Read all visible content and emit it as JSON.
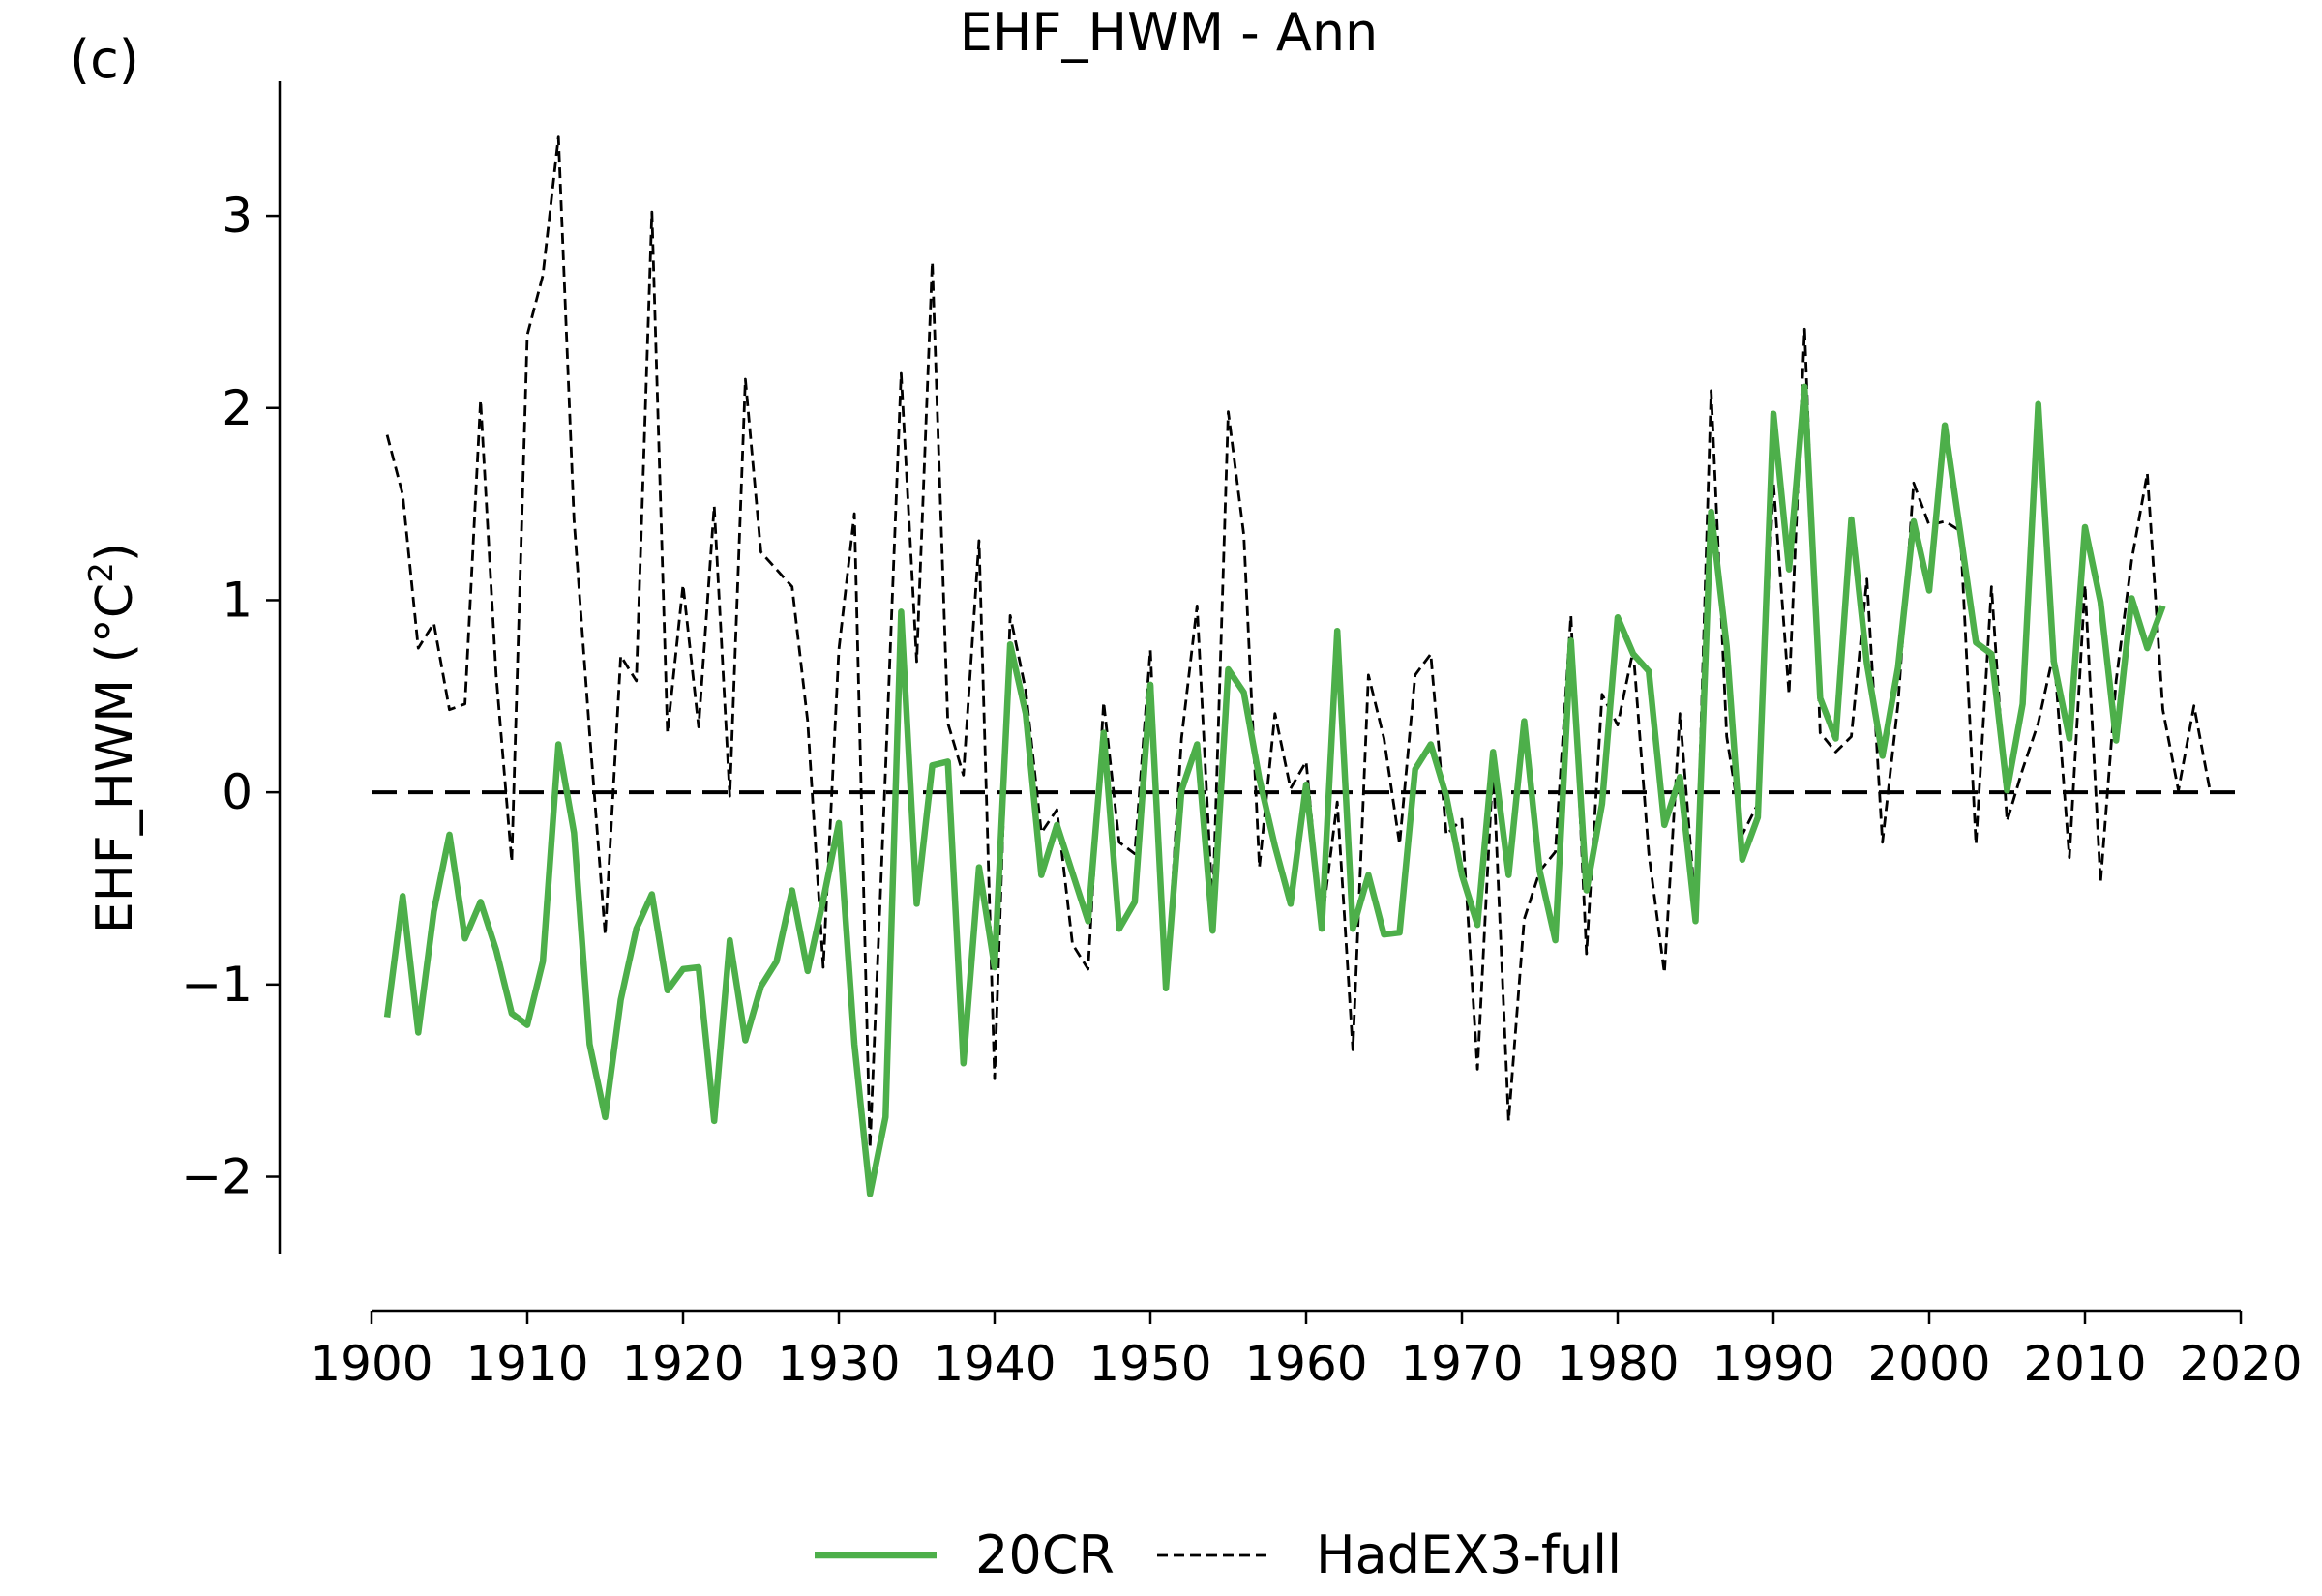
{
  "panel_label": "(c)",
  "chart_data": {
    "type": "line",
    "title": "EHF_HWM - Ann",
    "xlabel": "",
    "ylabel": "EHF_HWM (°C²)",
    "ylabel_main": "EHF_HWM (",
    "ylabel_unit": "°C",
    "ylabel_sup": "2",
    "ylabel_close": ")",
    "xlim": [
      1900,
      2020
    ],
    "ylim": [
      -2.4,
      3.7
    ],
    "x_ticks": [
      1900,
      1910,
      1920,
      1930,
      1940,
      1950,
      1960,
      1970,
      1980,
      1990,
      2000,
      2010,
      2020
    ],
    "x_tick_labels": [
      "1900",
      "1910",
      "1920",
      "1930",
      "1940",
      "1950",
      "1960",
      "1970",
      "1980",
      "1990",
      "2000",
      "2010",
      "2020"
    ],
    "y_ticks": [
      -2,
      -1,
      0,
      1,
      2,
      3
    ],
    "y_tick_labels": [
      "−2",
      "−1",
      "0",
      "1",
      "2",
      "3"
    ],
    "grid": false,
    "legend_position": "bottom-center",
    "reference_line": {
      "y": 0,
      "x_range": [
        1900,
        2020
      ],
      "color": "#000000",
      "style": "dashed"
    },
    "series": [
      {
        "name": "20CR",
        "color": "#4daf4a",
        "style": "solid",
        "x": [
          1901,
          1902,
          1903,
          1904,
          1905,
          1906,
          1907,
          1908,
          1909,
          1910,
          1911,
          1912,
          1913,
          1914,
          1915,
          1916,
          1917,
          1918,
          1919,
          1920,
          1921,
          1922,
          1923,
          1924,
          1925,
          1926,
          1927,
          1928,
          1929,
          1930,
          1931,
          1932,
          1933,
          1934,
          1935,
          1936,
          1937,
          1938,
          1939,
          1940,
          1941,
          1942,
          1943,
          1944,
          1945,
          1946,
          1947,
          1948,
          1949,
          1950,
          1951,
          1952,
          1953,
          1954,
          1955,
          1956,
          1957,
          1958,
          1959,
          1960,
          1961,
          1962,
          1963,
          1964,
          1965,
          1966,
          1967,
          1968,
          1969,
          1970,
          1971,
          1972,
          1973,
          1974,
          1975,
          1976,
          1977,
          1978,
          1979,
          1980,
          1981,
          1982,
          1983,
          1984,
          1985,
          1986,
          1987,
          1988,
          1989,
          1990,
          1991,
          1992,
          1993,
          1994,
          1995,
          1996,
          1997,
          1998,
          1999,
          2000,
          2001,
          2002,
          2003,
          2004,
          2005,
          2006,
          2007,
          2008,
          2009,
          2010,
          2011,
          2012,
          2013,
          2014,
          2015
        ],
        "y": [
          -1.17,
          -0.54,
          -1.25,
          -0.62,
          -0.22,
          -0.76,
          -0.57,
          -0.82,
          -1.15,
          -1.21,
          -0.88,
          0.25,
          -0.21,
          -1.31,
          -1.69,
          -1.08,
          -0.71,
          -0.53,
          -1.03,
          -0.92,
          -0.91,
          -1.71,
          -0.77,
          -1.29,
          -1.01,
          -0.88,
          -0.51,
          -0.93,
          -0.56,
          -0.16,
          -1.31,
          -2.09,
          -1.69,
          0.94,
          -0.58,
          0.14,
          0.16,
          -1.41,
          -0.39,
          -0.91,
          0.77,
          0.41,
          -0.43,
          -0.17,
          -0.42,
          -0.67,
          0.31,
          -0.71,
          -0.57,
          0.56,
          -1.02,
          0.01,
          0.25,
          -0.72,
          0.64,
          0.52,
          0.07,
          -0.28,
          -0.58,
          0.04,
          -0.71,
          0.84,
          -0.71,
          -0.43,
          -0.74,
          -0.73,
          0.12,
          0.25,
          -0.02,
          -0.43,
          -0.69,
          0.21,
          -0.43,
          0.37,
          -0.41,
          -0.77,
          0.79,
          -0.51,
          -0.06,
          0.91,
          0.72,
          0.63,
          -0.17,
          0.08,
          -0.67,
          1.46,
          0.76,
          -0.35,
          -0.13,
          1.97,
          1.16,
          2.11,
          0.49,
          0.28,
          1.42,
          0.67,
          0.19,
          0.65,
          1.41,
          1.05,
          1.91,
          1.35,
          0.78,
          0.72,
          0.01,
          0.46,
          2.02,
          0.68,
          0.28,
          1.38,
          0.99,
          0.27,
          1.01,
          0.75,
          0.97
        ]
      },
      {
        "name": "HadEX3-full",
        "color": "#000000",
        "style": "dashed",
        "x": [
          1901,
          1902,
          1903,
          1904,
          1905,
          1906,
          1907,
          1908,
          1909,
          1910,
          1911,
          1912,
          1913,
          1914,
          1915,
          1916,
          1917,
          1918,
          1919,
          1920,
          1921,
          1922,
          1923,
          1924,
          1925,
          1926,
          1927,
          1928,
          1929,
          1930,
          1931,
          1932,
          1933,
          1934,
          1935,
          1936,
          1937,
          1938,
          1939,
          1940,
          1941,
          1942,
          1943,
          1944,
          1945,
          1946,
          1947,
          1948,
          1949,
          1950,
          1951,
          1952,
          1953,
          1954,
          1955,
          1956,
          1957,
          1958,
          1959,
          1960,
          1961,
          1962,
          1963,
          1964,
          1965,
          1966,
          1967,
          1968,
          1969,
          1970,
          1971,
          1972,
          1973,
          1974,
          1975,
          1976,
          1977,
          1978,
          1979,
          1980,
          1981,
          1982,
          1983,
          1984,
          1985,
          1986,
          1987,
          1988,
          1989,
          1990,
          1991,
          1992,
          1993,
          1994,
          1995,
          1996,
          1997,
          1998,
          1999,
          2000,
          2001,
          2002,
          2003,
          2004,
          2005,
          2006,
          2007,
          2008,
          2009,
          2010,
          2011,
          2012,
          2013,
          2014,
          2015,
          2016,
          2017,
          2018
        ],
        "y": [
          1.86,
          1.55,
          0.75,
          0.88,
          0.43,
          0.46,
          2.04,
          0.61,
          -0.36,
          2.38,
          2.69,
          3.41,
          1.42,
          0.31,
          -0.74,
          0.71,
          0.58,
          3.02,
          0.31,
          1.08,
          0.34,
          1.49,
          -0.02,
          2.15,
          1.25,
          1.16,
          1.07,
          0.37,
          -0.91,
          0.74,
          1.45,
          -1.85,
          0.12,
          2.18,
          0.68,
          2.76,
          0.36,
          0.09,
          1.31,
          -1.49,
          0.92,
          0.53,
          -0.21,
          -0.09,
          -0.79,
          -0.92,
          0.47,
          -0.26,
          -0.32,
          0.74,
          -1.04,
          0.28,
          0.97,
          -0.61,
          1.98,
          1.34,
          -0.39,
          0.41,
          0.02,
          0.16,
          -0.69,
          -0.05,
          -1.34,
          0.61,
          0.28,
          -0.27,
          0.61,
          0.72,
          -0.22,
          -0.14,
          -1.44,
          0.15,
          -1.71,
          -0.66,
          -0.41,
          -0.31,
          0.92,
          -0.84,
          0.51,
          0.35,
          0.74,
          -0.32,
          -0.94,
          0.41,
          -0.61,
          2.09,
          0.29,
          -0.22,
          -0.06,
          1.61,
          0.51,
          2.41,
          0.31,
          0.21,
          0.29,
          1.11,
          -0.26,
          0.46,
          1.61,
          1.39,
          1.41,
          1.36,
          -0.27,
          1.07,
          -0.15,
          0.12,
          0.36,
          0.73,
          -0.34,
          1.08,
          -0.47,
          0.58,
          1.21,
          1.66,
          0.43,
          0.01,
          0.45,
          0.02
        ]
      }
    ]
  }
}
